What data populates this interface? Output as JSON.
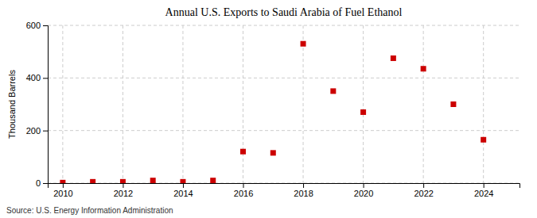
{
  "chart_data": {
    "type": "scatter",
    "title": "Annual U.S. Exports to Saudi Arabia of Fuel Ethanol",
    "ylabel": "Thousand Barrels",
    "annotations": [
      "Source: U.S. Energy Information Administration"
    ],
    "x": [
      2010,
      2011,
      2012,
      2013,
      2014,
      2015,
      2016,
      2017,
      2018,
      2019,
      2020,
      2021,
      2022,
      2023,
      2024
    ],
    "values": [
      2,
      5,
      5,
      10,
      5,
      10,
      120,
      115,
      530,
      350,
      270,
      475,
      435,
      300,
      165
    ],
    "color": "#cc0000",
    "marker": "square",
    "xlim": [
      2009.5,
      2025.2
    ],
    "ylim": [
      0,
      600
    ],
    "xticks": [
      2010,
      2012,
      2014,
      2016,
      2018,
      2020,
      2022,
      2024
    ],
    "yticks": [
      0,
      200,
      400,
      600
    ],
    "grid": true
  }
}
